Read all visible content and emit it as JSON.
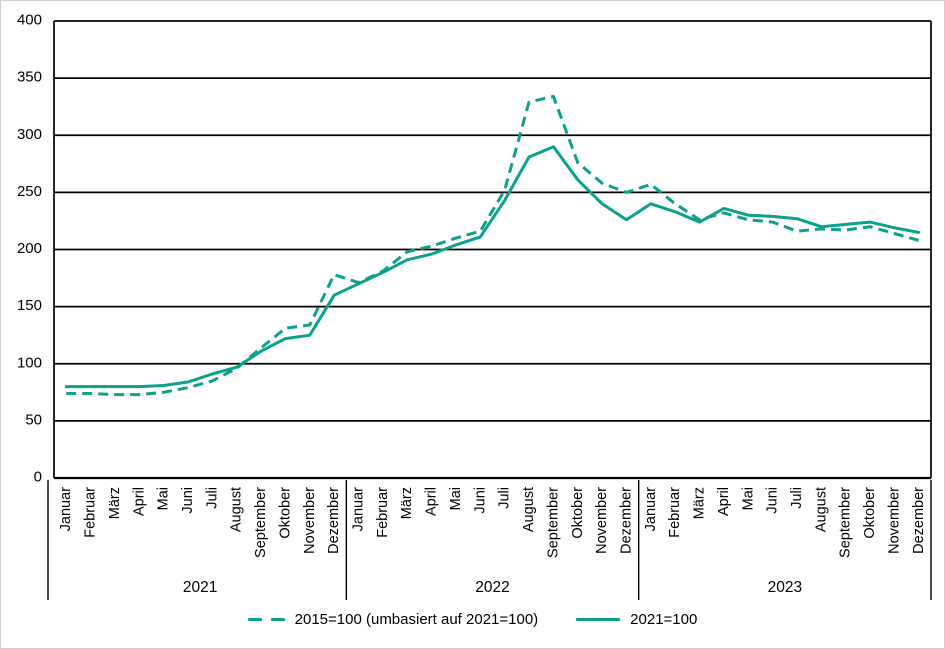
{
  "chart_data": {
    "type": "line",
    "title": "",
    "xlabel": "",
    "ylabel": "",
    "ylim": [
      0,
      400
    ],
    "y_ticks": [
      0,
      50,
      100,
      150,
      200,
      250,
      300,
      350,
      400
    ],
    "grid": "horizontal",
    "legend_position": "bottom",
    "years": [
      "2021",
      "2022",
      "2023"
    ],
    "months": [
      "Januar",
      "Februar",
      "März",
      "April",
      "Mai",
      "Juni",
      "Juli",
      "August",
      "September",
      "Oktober",
      "November",
      "Dezember"
    ],
    "series": [
      {
        "name": "2015=100 (umbasiert auf 2021=100)",
        "style": "dashed",
        "values": [
          74,
          74,
          73,
          73,
          75,
          79,
          85,
          96,
          114,
          131,
          134,
          178,
          171,
          181,
          198,
          203,
          210,
          216,
          252,
          329,
          334,
          276,
          258,
          250,
          257,
          240,
          226,
          232,
          226,
          224,
          216,
          218,
          217,
          220,
          214,
          208
        ]
      },
      {
        "name": "2021=100",
        "style": "solid",
        "values": [
          80,
          80,
          80,
          80,
          81,
          84,
          91,
          97,
          111,
          122,
          125,
          160,
          170,
          180,
          191,
          196,
          204,
          211,
          243,
          281,
          290,
          261,
          240,
          226,
          240,
          233,
          224,
          236,
          230,
          229,
          227,
          220,
          222,
          224,
          219,
          215
        ]
      }
    ],
    "colors": {
      "line": "#0BA18C",
      "axis": "#000000"
    }
  }
}
